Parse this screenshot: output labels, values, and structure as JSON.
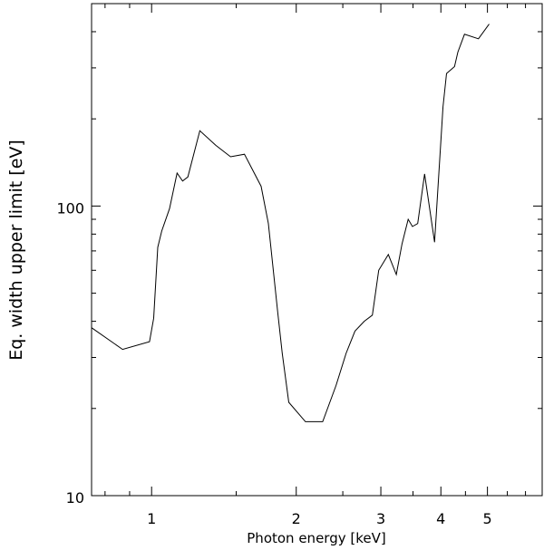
{
  "chart_data": {
    "type": "line",
    "title": "",
    "xlabel": "Photon energy [keV]",
    "ylabel": "Eq. width upper limit [eV]",
    "xscale": "log",
    "yscale": "log",
    "xlim": [
      0.75,
      6.5
    ],
    "ylim": [
      10,
      500
    ],
    "grid": false,
    "x_ticks": [
      1,
      2,
      3,
      4,
      5
    ],
    "x_tick_labels": [
      "1",
      "2",
      "3",
      "4",
      "5"
    ],
    "y_ticks": [
      10,
      100
    ],
    "y_tick_labels": [
      "10",
      "100"
    ],
    "series": [
      {
        "x": [
          0.75,
          0.87,
          0.99,
          1.01,
          1.03,
          1.05,
          1.09,
          1.13,
          1.16,
          1.19,
          1.26,
          1.36,
          1.46,
          1.56,
          1.69,
          1.75,
          1.83,
          1.87,
          1.93,
          2.09,
          2.27,
          2.42,
          2.54,
          2.65,
          2.77,
          2.88,
          2.97,
          3.11,
          3.23,
          3.32,
          3.42,
          3.49,
          3.58,
          3.7,
          3.88,
          4.04,
          4.11,
          4.27,
          4.34,
          4.48,
          4.79,
          5.04
        ],
        "y": [
          38,
          32,
          34,
          41,
          72,
          82,
          98,
          130,
          122,
          126,
          182,
          162,
          148,
          151,
          117,
          87,
          43,
          31,
          21,
          18,
          18,
          24,
          31,
          37,
          40,
          42,
          60,
          68,
          58,
          74,
          90,
          85,
          87,
          129,
          75,
          220,
          287,
          303,
          340,
          392,
          378,
          425
        ]
      }
    ]
  }
}
